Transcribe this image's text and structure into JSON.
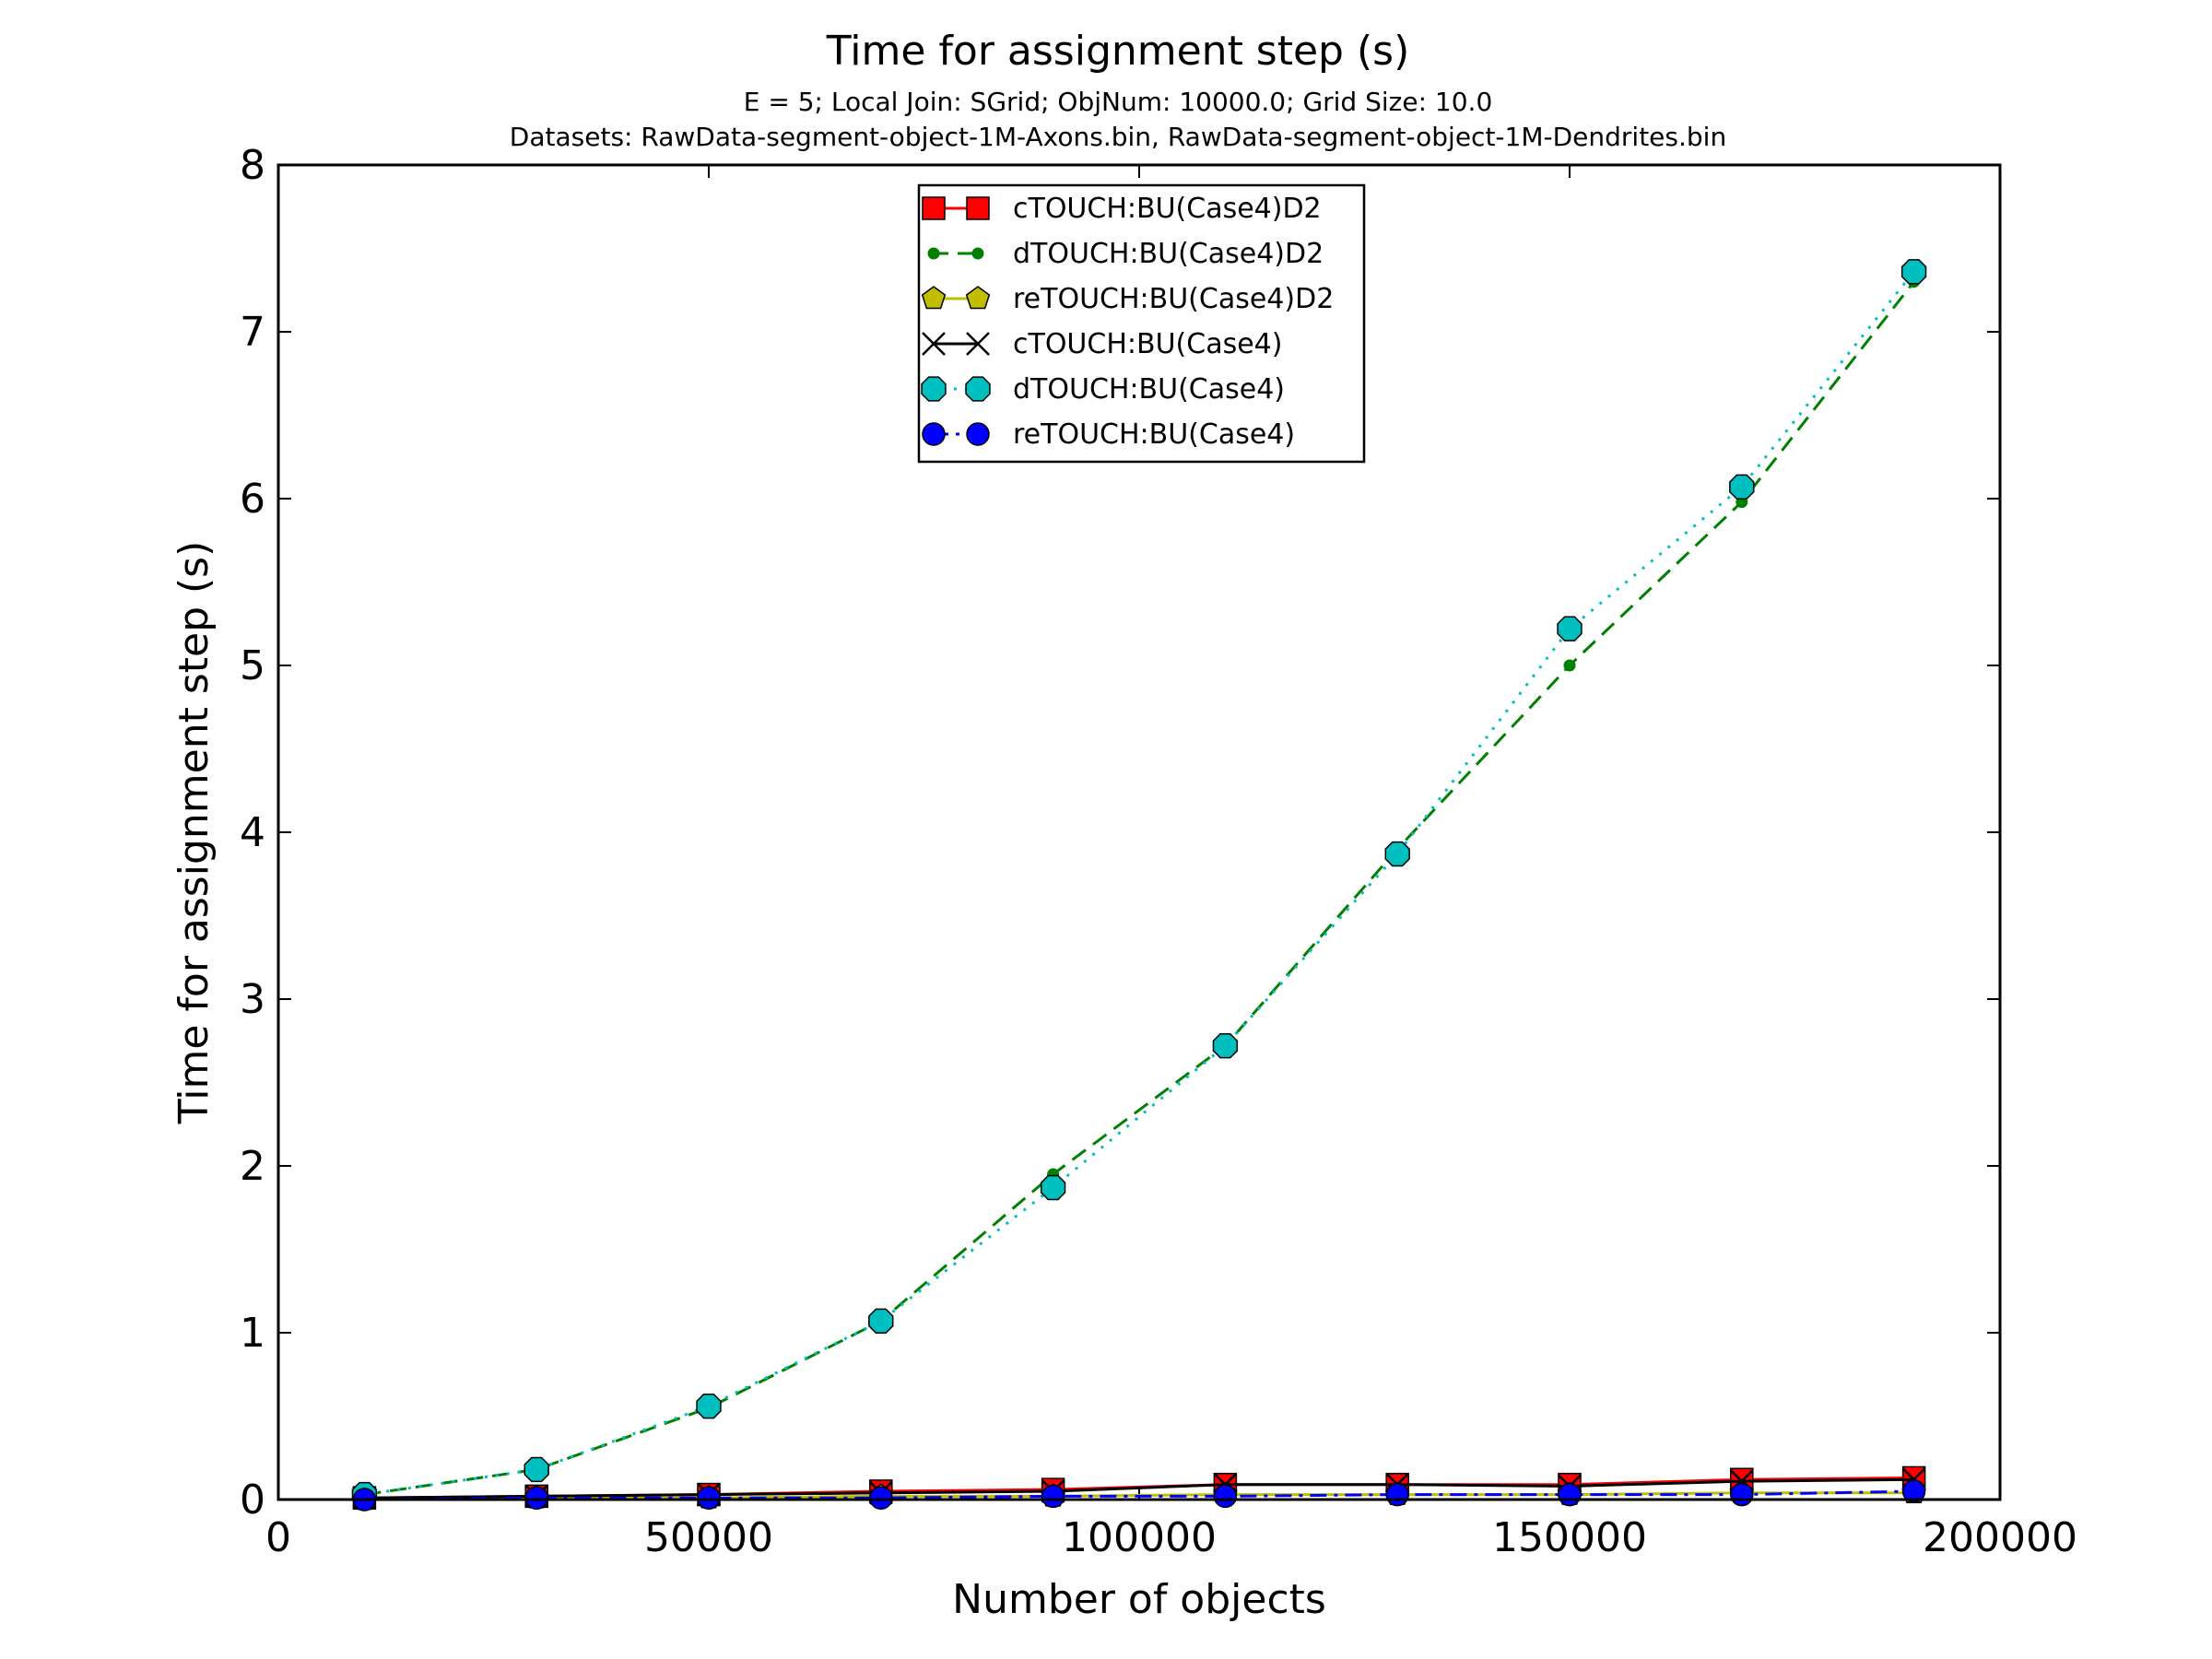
{
  "chart_data": {
    "type": "line",
    "title": "Time for assignment step (s)",
    "subtitle_lines": [
      "E = 5; Local Join: SGrid; ObjNum: 10000.0; Grid Size: 10.0",
      "Datasets: RawData-segment-object-1M-Axons.bin, RawData-segment-object-1M-Dendrites.bin"
    ],
    "xlabel": "Number of objects",
    "ylabel": "Time for assignment step (s)",
    "xlim": [
      0,
      200000
    ],
    "ylim": [
      0,
      8
    ],
    "x_ticks": [
      0,
      50000,
      100000,
      150000,
      200000
    ],
    "y_ticks": [
      0,
      1,
      2,
      3,
      4,
      5,
      6,
      7,
      8
    ],
    "grid": false,
    "legend_position": "upper center",
    "x": [
      10000,
      30000,
      50000,
      70000,
      90000,
      110000,
      130000,
      150000,
      170000,
      190000
    ],
    "series": [
      {
        "name": "cTOUCH:BU(Case4)D2",
        "color": "#ff0000",
        "line_style": "solid",
        "marker": "square",
        "values": [
          0.01,
          0.02,
          0.03,
          0.05,
          0.06,
          0.09,
          0.09,
          0.09,
          0.12,
          0.13
        ]
      },
      {
        "name": "dTOUCH:BU(Case4)D2",
        "color": "#008000",
        "line_style": "dashed",
        "marker": "dot",
        "values": [
          0.03,
          0.18,
          0.55,
          1.07,
          1.95,
          2.72,
          3.9,
          5.0,
          5.98,
          7.3
        ]
      },
      {
        "name": "reTOUCH:BU(Case4)D2",
        "color": "#bfbf00",
        "line_style": "solid",
        "marker": "pentagon",
        "values": [
          0.0,
          0.01,
          0.01,
          0.02,
          0.02,
          0.03,
          0.03,
          0.03,
          0.04,
          0.04
        ]
      },
      {
        "name": "cTOUCH:BU(Case4)",
        "color": "#000000",
        "line_style": "solid",
        "marker": "x",
        "values": [
          0.01,
          0.02,
          0.03,
          0.04,
          0.05,
          0.09,
          0.09,
          0.08,
          0.11,
          0.12
        ]
      },
      {
        "name": "dTOUCH:BU(Case4)",
        "color": "#00bfbf",
        "line_style": "dotted",
        "marker": "octagon",
        "values": [
          0.03,
          0.18,
          0.56,
          1.07,
          1.87,
          2.72,
          3.87,
          5.22,
          6.07,
          7.36
        ]
      },
      {
        "name": "reTOUCH:BU(Case4)",
        "color": "#0000ff",
        "line_style": "dashdot",
        "marker": "circle",
        "values": [
          0.0,
          0.01,
          0.01,
          0.01,
          0.02,
          0.02,
          0.03,
          0.03,
          0.03,
          0.05
        ]
      }
    ]
  }
}
